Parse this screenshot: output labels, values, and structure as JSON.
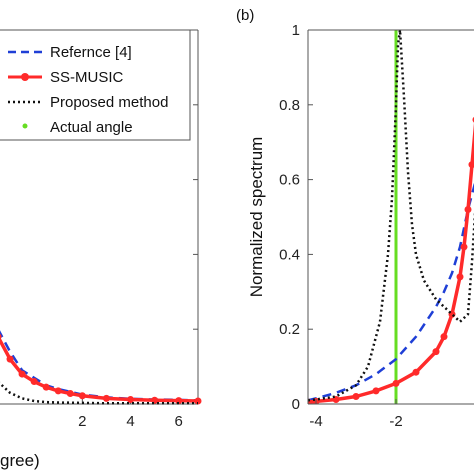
{
  "chart_data": [
    {
      "type": "line",
      "panel_label": "",
      "xlabel": "gree)",
      "ylabel": "",
      "xlim": [
        -1.5,
        6.8
      ],
      "ylim": [
        0,
        1
      ],
      "x_ticks": [
        2,
        4,
        6
      ],
      "x_tick_labels": [
        "2",
        "4",
        "6"
      ],
      "legend": {
        "placement": "top-right",
        "entries": [
          {
            "label": "Refernce [4]",
            "color": "#1f3fd6",
            "style": "dashed"
          },
          {
            "label": "SS-MUSIC",
            "color": "#ff2a2a",
            "style": "solid-markers"
          },
          {
            "label": "Proposed method",
            "color": "#111111",
            "style": "dotted"
          },
          {
            "label": "Actual angle",
            "color": "#66dd22",
            "style": "point"
          }
        ]
      },
      "series": [
        {
          "name": "Refernce [4]",
          "color": "#1f3fd6",
          "style": "dashed",
          "x": [
            -1.5,
            -1.0,
            -0.5,
            0,
            0.5,
            1,
            2,
            3,
            4,
            5,
            6,
            6.8
          ],
          "values": [
            0.2,
            0.14,
            0.09,
            0.07,
            0.05,
            0.04,
            0.025,
            0.018,
            0.014,
            0.012,
            0.011,
            0.01
          ]
        },
        {
          "name": "SS-MUSIC",
          "color": "#ff2a2a",
          "style": "solid-markers",
          "x": [
            -1.5,
            -1.0,
            -0.5,
            0,
            0.5,
            1,
            1.5,
            2,
            3,
            4,
            5,
            6,
            6.8
          ],
          "values": [
            0.18,
            0.12,
            0.08,
            0.06,
            0.045,
            0.035,
            0.028,
            0.022,
            0.015,
            0.012,
            0.01,
            0.009,
            0.008
          ]
        },
        {
          "name": "Proposed method",
          "color": "#111111",
          "style": "dotted",
          "x": [
            -1.5,
            -1.0,
            -0.5,
            0,
            0.5,
            1,
            2,
            3,
            4,
            5,
            6,
            6.8
          ],
          "values": [
            0.06,
            0.03,
            0.015,
            0.008,
            0.005,
            0.004,
            0.003,
            0.002,
            0.002,
            0.002,
            0.002,
            0.002
          ]
        }
      ]
    },
    {
      "type": "line",
      "panel_label": "(b)",
      "xlabel": "",
      "ylabel": "Normalized spectrum",
      "xlim": [
        -4.2,
        0
      ],
      "ylim": [
        0,
        1
      ],
      "x_ticks": [
        -4,
        -2
      ],
      "x_tick_labels": [
        "-4",
        "-2"
      ],
      "y_ticks": [
        0,
        0.2,
        0.4,
        0.6,
        0.8,
        1
      ],
      "y_tick_labels": [
        "0",
        "0.2",
        "0.4",
        "0.6",
        "0.8",
        "1"
      ],
      "actual_angle": -2,
      "series": [
        {
          "name": "Refernce [4]",
          "color": "#1f3fd6",
          "style": "dashed",
          "x": [
            -4.2,
            -4.0,
            -3.5,
            -3.0,
            -2.5,
            -2.0,
            -1.5,
            -1.0,
            -0.8,
            -0.6,
            -0.4,
            -0.2,
            0
          ],
          "values": [
            0.01,
            0.015,
            0.03,
            0.05,
            0.08,
            0.12,
            0.18,
            0.26,
            0.3,
            0.35,
            0.42,
            0.52,
            0.6
          ]
        },
        {
          "name": "SS-MUSIC",
          "color": "#ff2a2a",
          "style": "solid-markers",
          "x": [
            -4.2,
            -4.0,
            -3.5,
            -3.0,
            -2.5,
            -2.0,
            -1.5,
            -1.0,
            -0.8,
            -0.6,
            -0.4,
            -0.3,
            -0.2,
            -0.1,
            0
          ],
          "values": [
            0.005,
            0.007,
            0.012,
            0.02,
            0.035,
            0.055,
            0.085,
            0.14,
            0.18,
            0.24,
            0.34,
            0.42,
            0.52,
            0.64,
            0.76
          ]
        },
        {
          "name": "Proposed method",
          "color": "#111111",
          "style": "dotted",
          "x": [
            -4.2,
            -4.0,
            -3.5,
            -3.0,
            -2.7,
            -2.4,
            -2.2,
            -2.1,
            -2.0,
            -1.95,
            -1.9,
            -1.8,
            -1.7,
            -1.6,
            -1.5,
            -1.3,
            -1.0,
            -0.6,
            -0.4,
            -0.2,
            -0.1,
            0
          ],
          "values": [
            0.01,
            0.012,
            0.02,
            0.05,
            0.1,
            0.22,
            0.4,
            0.55,
            0.8,
            0.96,
            1.0,
            0.82,
            0.62,
            0.48,
            0.4,
            0.33,
            0.28,
            0.24,
            0.22,
            0.24,
            0.38,
            0.55
          ]
        }
      ]
    }
  ]
}
